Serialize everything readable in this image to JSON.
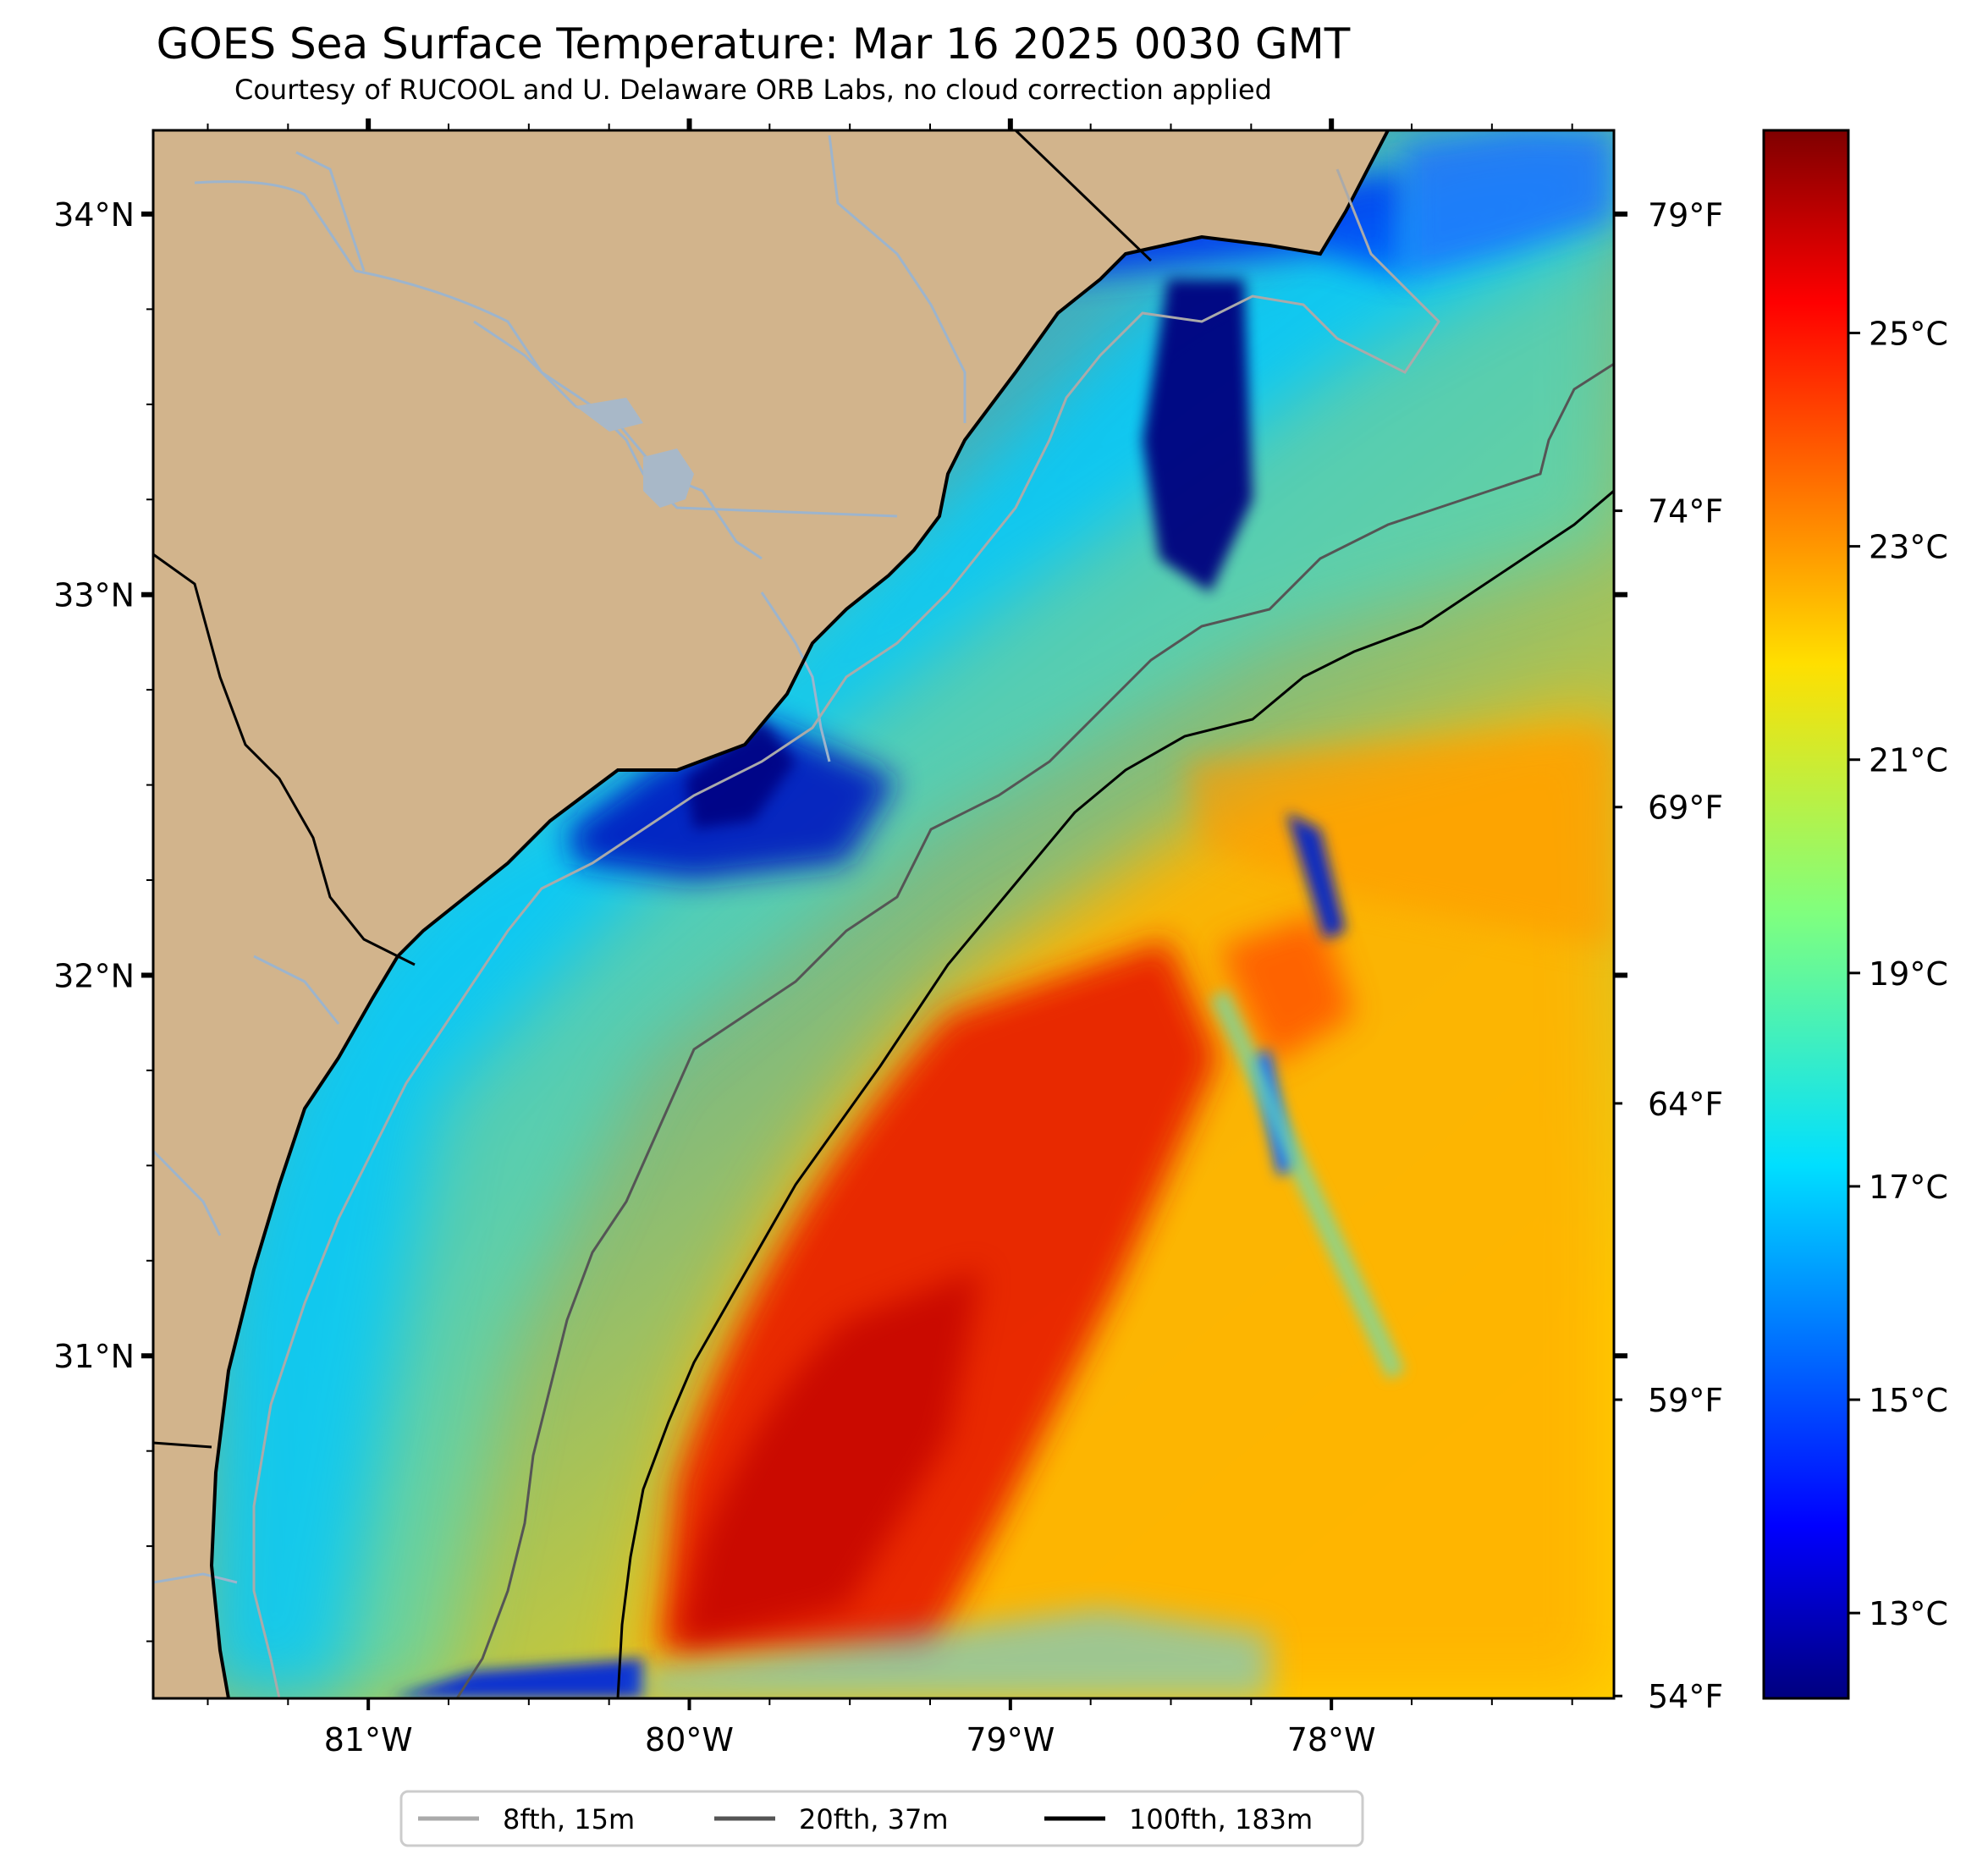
{
  "header": {
    "title": "GOES Sea Surface Temperature: Mar 16 2025 0030 GMT",
    "subtitle": "Courtesy of RUCOOL and U. Delaware ORB Labs, no cloud correction applied"
  },
  "map": {
    "lon_range": [
      -81.67,
      -77.12
    ],
    "lat_range": [
      30.1,
      34.22
    ],
    "lon_ticks": [
      {
        "value": -81,
        "label": "81°W"
      },
      {
        "value": -80,
        "label": "80°W"
      },
      {
        "value": -79,
        "label": "79°W"
      },
      {
        "value": -78,
        "label": "78°W"
      }
    ],
    "lat_ticks": [
      {
        "value": 34,
        "label": "34°N"
      },
      {
        "value": 33,
        "label": "33°N"
      },
      {
        "value": 32,
        "label": "32°N"
      },
      {
        "value": 31,
        "label": "31°N"
      }
    ],
    "fahrenheit_ticks": [
      {
        "value": 79,
        "label": "79°F"
      },
      {
        "value": 74,
        "label": "74°F"
      },
      {
        "value": 69,
        "label": "69°F"
      },
      {
        "value": 64,
        "label": "64°F"
      },
      {
        "value": 59,
        "label": "59°F"
      },
      {
        "value": 54,
        "label": "54°F"
      }
    ],
    "land_color": "#d2b48c",
    "river_color": "#9db4cc"
  },
  "colorbar": {
    "range_c": [
      12.2,
      26.9
    ],
    "ticks": [
      {
        "value": 13,
        "label": "13°C"
      },
      {
        "value": 15,
        "label": "15°C"
      },
      {
        "value": 17,
        "label": "17°C"
      },
      {
        "value": 19,
        "label": "19°C"
      },
      {
        "value": 21,
        "label": "21°C"
      },
      {
        "value": 23,
        "label": "23°C"
      },
      {
        "value": 25,
        "label": "25°C"
      }
    ],
    "colormap": "jet"
  },
  "legend": {
    "items": [
      {
        "label": "8fth, 15m",
        "color": "#aaaaaa"
      },
      {
        "label": "20fth, 37m",
        "color": "#555555"
      },
      {
        "label": "100fth, 183m",
        "color": "#000000"
      }
    ]
  }
}
